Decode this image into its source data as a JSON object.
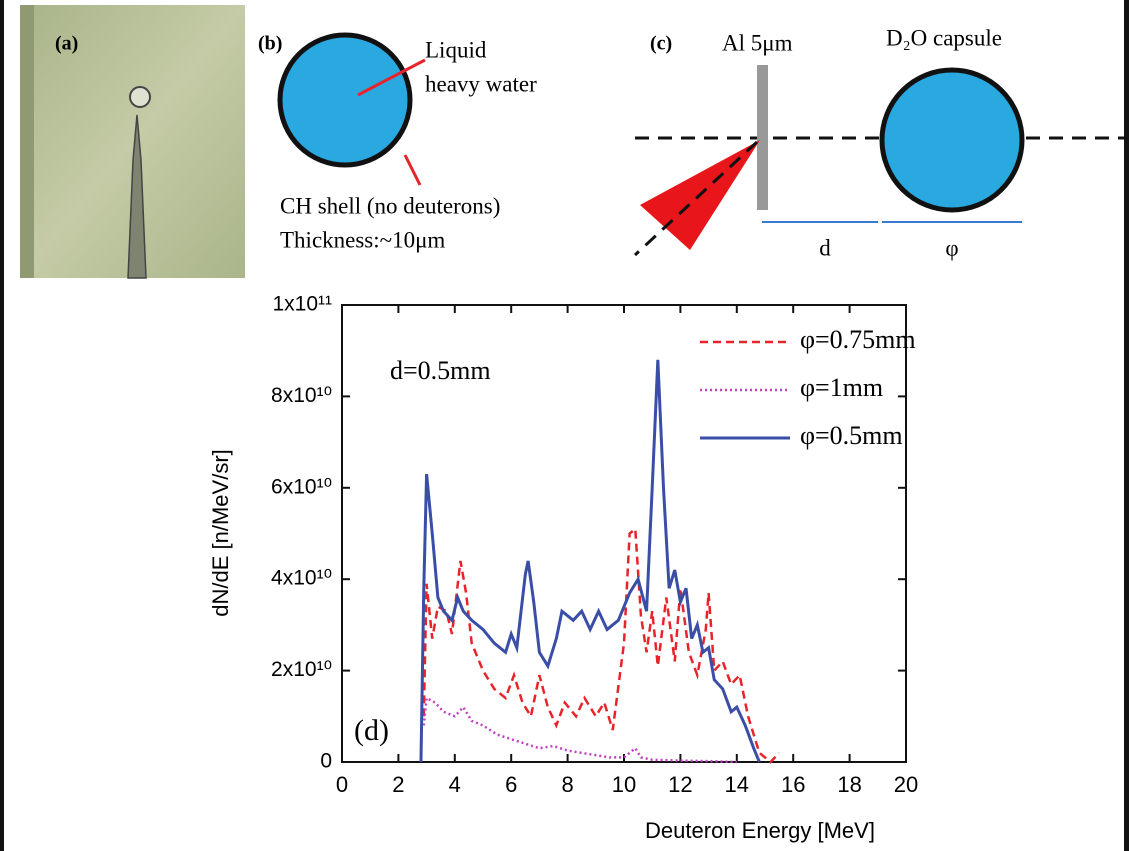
{
  "panels": {
    "a": {
      "label": "(a)"
    },
    "b": {
      "label": "(b)",
      "core_text": [
        "Liquid",
        "heavy water"
      ],
      "shell_text": [
        "CH shell (no deuterons)",
        "Thickness:~10μm"
      ]
    },
    "c": {
      "label": "(c)",
      "foil": "Al 5μm",
      "capsule": "D₂O capsule",
      "distance": "d",
      "diameter": "φ"
    }
  },
  "chart_data": {
    "type": "line",
    "panel_label": "(d)",
    "annotation": "d=0.5mm",
    "x_label": "Deuteron Energy [MeV]",
    "y_label": "dN/dE [n/MeV/sr]",
    "xlim": [
      0,
      20
    ],
    "xticks": [
      0,
      2,
      4,
      6,
      8,
      10,
      12,
      14,
      16,
      18,
      20
    ],
    "ylim": [
      0,
      100000000000.0
    ],
    "yticks": [
      0,
      {
        "value": 20000000000.0,
        "label": "2x10¹⁰"
      },
      {
        "value": 40000000000.0,
        "label": "4x10¹⁰"
      },
      {
        "value": 60000000000.0,
        "label": "6x10¹⁰"
      },
      {
        "value": 80000000000.0,
        "label": "8x10¹⁰"
      },
      {
        "value": 100000000000.0,
        "label": "1x10¹¹"
      }
    ],
    "legend": "upper right",
    "series": [
      {
        "name": "φ=0.75mm",
        "color": "#e8242a",
        "linestyle": "dashed",
        "x": [
          2.9,
          3.0,
          3.2,
          3.4,
          3.7,
          3.9,
          4.2,
          4.4,
          4.6,
          5.0,
          5.4,
          5.8,
          6.1,
          6.4,
          6.7,
          7.0,
          7.3,
          7.6,
          7.9,
          8.3,
          8.6,
          9.0,
          9.3,
          9.6,
          10.0,
          10.2,
          10.4,
          10.6,
          10.8,
          11.0,
          11.2,
          11.5,
          11.8,
          12.0,
          12.3,
          12.6,
          12.9,
          13.0,
          13.2,
          13.5,
          13.8,
          14.1,
          14.4,
          14.8,
          15.2,
          15.5
        ],
        "values": [
          10000000000.0,
          39000000000.0,
          27000000000.0,
          34000000000.0,
          33000000000.0,
          28000000000.0,
          44000000000.0,
          37000000000.0,
          26000000000.0,
          20000000000.0,
          16000000000.0,
          14000000000.0,
          19000000000.0,
          13000000000.0,
          10000000000.0,
          19000000000.0,
          12000000000.0,
          8000000000.0,
          13000000000.0,
          10000000000.0,
          14000000000.0,
          10000000000.0,
          13000000000.0,
          7000000000.0,
          26000000000.0,
          50000000000.0,
          51000000000.0,
          32000000000.0,
          24000000000.0,
          33000000000.0,
          21000000000.0,
          36000000000.0,
          22000000000.0,
          38000000000.0,
          24000000000.0,
          19000000000.0,
          29000000000.0,
          37000000000.0,
          20000000000.0,
          22000000000.0,
          17000000000.0,
          19000000000.0,
          10000000000.0,
          2000000000.0,
          0,
          2000000000.0
        ]
      },
      {
        "name": "φ=1mm",
        "color": "#c040c0",
        "linestyle": "dotted",
        "x": [
          2.9,
          3.0,
          3.3,
          3.6,
          4.0,
          4.3,
          4.6,
          5.0,
          5.5,
          6.0,
          6.5,
          7.0,
          7.5,
          8.0,
          8.5,
          9.0,
          9.5,
          10.0,
          10.4,
          10.6,
          11.0,
          12.0,
          13.0,
          14.0
        ],
        "values": [
          8000000000.0,
          14000000000.0,
          13000000000.0,
          11000000000.0,
          10000000000.0,
          12000000000.0,
          9000000000.0,
          8000000000.0,
          6000000000.0,
          5000000000.0,
          4000000000.0,
          3000000000.0,
          3500000000.0,
          2500000000.0,
          2000000000.0,
          1500000000.0,
          1000000000.0,
          1000000000.0,
          3000000000.0,
          1000000000.0,
          500000000.0,
          300000000.0,
          200000000.0,
          0
        ]
      },
      {
        "name": "φ=0.5mm",
        "color": "#3a4ea8",
        "linestyle": "solid",
        "x": [
          2.8,
          2.9,
          3.0,
          3.2,
          3.4,
          3.6,
          3.9,
          4.1,
          4.3,
          4.6,
          5.0,
          5.4,
          5.8,
          6.0,
          6.2,
          6.5,
          6.6,
          6.8,
          7.0,
          7.3,
          7.6,
          7.8,
          8.2,
          8.5,
          8.8,
          9.1,
          9.4,
          9.8,
          10.2,
          10.5,
          10.8,
          11.0,
          11.2,
          11.4,
          11.6,
          11.8,
          12.0,
          12.2,
          12.4,
          12.6,
          12.8,
          13.0,
          13.2,
          13.5,
          13.8,
          14.0,
          14.3,
          14.6,
          14.8
        ],
        "values": [
          0,
          38000000000.0,
          63000000000.0,
          50000000000.0,
          36000000000.0,
          33000000000.0,
          31000000000.0,
          36000000000.0,
          33000000000.0,
          31000000000.0,
          29000000000.0,
          26000000000.0,
          24000000000.0,
          28000000000.0,
          25000000000.0,
          41000000000.0,
          44000000000.0,
          35000000000.0,
          24000000000.0,
          21000000000.0,
          27000000000.0,
          33000000000.0,
          31000000000.0,
          33000000000.0,
          29000000000.0,
          33000000000.0,
          29000000000.0,
          31000000000.0,
          37000000000.0,
          40000000000.0,
          33000000000.0,
          60000000000.0,
          88000000000.0,
          60000000000.0,
          38000000000.0,
          42000000000.0,
          35000000000.0,
          38000000000.0,
          27000000000.0,
          30000000000.0,
          24000000000.0,
          25000000000.0,
          18000000000.0,
          16000000000.0,
          11000000000.0,
          12000000000.0,
          8000000000.0,
          3000000000.0,
          0
        ]
      }
    ]
  }
}
